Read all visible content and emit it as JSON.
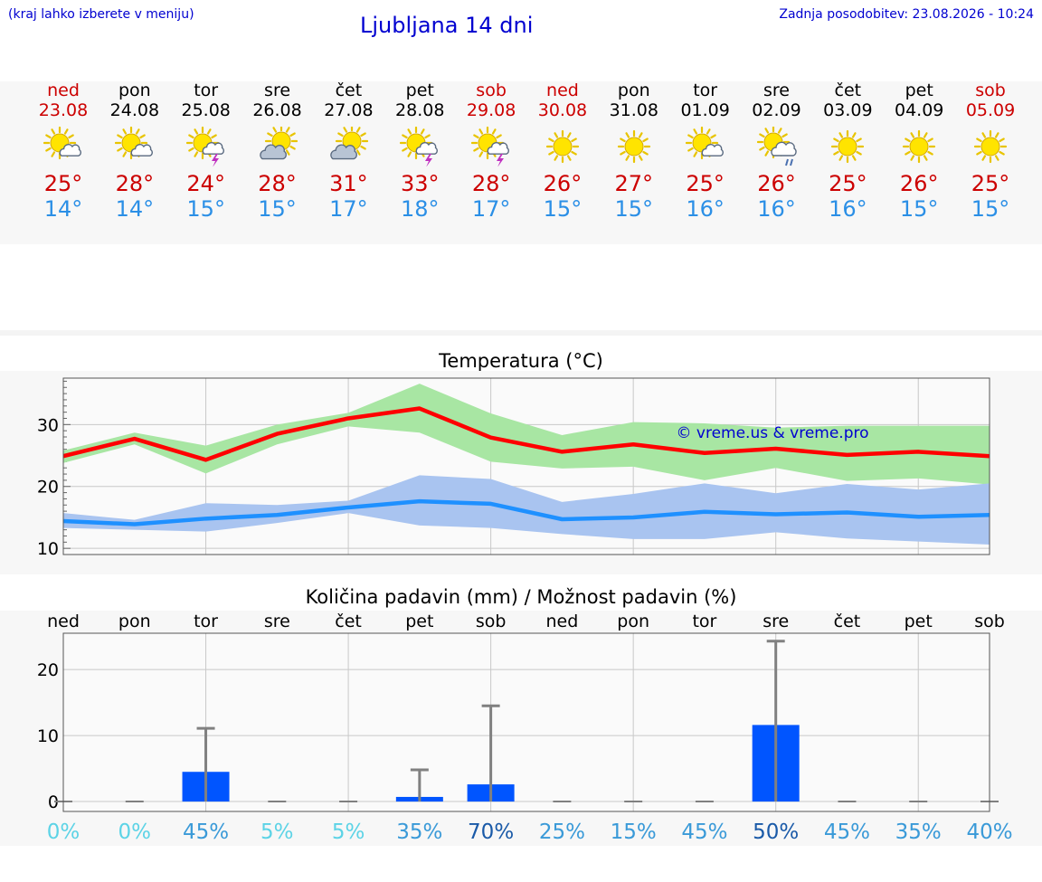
{
  "header": {
    "note": "(kraj lahko izberete v meniju)",
    "title": "Ljubljana 14 dni",
    "updated": "Zadnja posodobitev: 23.08.2026 - 10:24"
  },
  "colors": {
    "weekday": "#000000",
    "weekend": "#cc0000",
    "tmax": "#cc0000",
    "tmin": "#2b8fe6",
    "tmax_line": "#ff0000",
    "tmax_band": "#a8e6a3",
    "tmin_line": "#1e90ff",
    "tmin_band": "#a9c4f0",
    "precip_bar": "#0055ff",
    "error_bar": "#808080",
    "watermark": "#0000d0"
  },
  "days": [
    {
      "day": "ned",
      "date": "23.08",
      "weekend": true,
      "icon": "sun-cloud-icon",
      "tmax": "25°",
      "tmin": "14°"
    },
    {
      "day": "pon",
      "date": "24.08",
      "weekend": false,
      "icon": "sun-cloud-icon",
      "tmax": "28°",
      "tmin": "14°"
    },
    {
      "day": "tor",
      "date": "25.08",
      "weekend": false,
      "icon": "sun-storm-icon",
      "tmax": "24°",
      "tmin": "15°"
    },
    {
      "day": "sre",
      "date": "26.08",
      "weekend": false,
      "icon": "cloud-sun-icon",
      "tmax": "28°",
      "tmin": "15°"
    },
    {
      "day": "čet",
      "date": "27.08",
      "weekend": false,
      "icon": "cloud-sun-icon",
      "tmax": "31°",
      "tmin": "17°"
    },
    {
      "day": "pet",
      "date": "28.08",
      "weekend": false,
      "icon": "sun-storm-icon",
      "tmax": "33°",
      "tmin": "18°"
    },
    {
      "day": "sob",
      "date": "29.08",
      "weekend": true,
      "icon": "sun-storm-icon",
      "tmax": "28°",
      "tmin": "17°"
    },
    {
      "day": "ned",
      "date": "30.08",
      "weekend": true,
      "icon": "sun-icon",
      "tmax": "26°",
      "tmin": "15°"
    },
    {
      "day": "pon",
      "date": "31.08",
      "weekend": false,
      "icon": "sun-icon",
      "tmax": "27°",
      "tmin": "15°"
    },
    {
      "day": "tor",
      "date": "01.09",
      "weekend": false,
      "icon": "sun-cloud-icon",
      "tmax": "25°",
      "tmin": "16°"
    },
    {
      "day": "sre",
      "date": "02.09",
      "weekend": false,
      "icon": "sun-rain-icon",
      "tmax": "26°",
      "tmin": "16°"
    },
    {
      "day": "čet",
      "date": "03.09",
      "weekend": false,
      "icon": "sun-icon",
      "tmax": "25°",
      "tmin": "16°"
    },
    {
      "day": "pet",
      "date": "04.09",
      "weekend": false,
      "icon": "sun-icon",
      "tmax": "26°",
      "tmin": "15°"
    },
    {
      "day": "sob",
      "date": "05.09",
      "weekend": true,
      "icon": "sun-icon",
      "tmax": "25°",
      "tmin": "15°"
    }
  ],
  "chart_data": [
    {
      "type": "line",
      "title": "Temperatura (°C)",
      "x": [
        "23.08",
        "24.08",
        "25.08",
        "26.08",
        "27.08",
        "28.08",
        "29.08",
        "30.08",
        "31.08",
        "01.09",
        "02.09",
        "03.09",
        "04.09",
        "05.09"
      ],
      "ylim": [
        9,
        37.5
      ],
      "yticks": [
        10,
        20,
        30
      ],
      "grid": true,
      "watermark": "© vreme.us & vreme.pro",
      "series": [
        {
          "role": "max",
          "values": [
            24.9,
            27.7,
            24.3,
            28.5,
            31.0,
            32.6,
            27.9,
            25.6,
            26.8,
            25.4,
            26.1,
            25.1,
            25.6,
            24.9
          ],
          "band_low": [
            23.8,
            26.8,
            22.1,
            26.8,
            29.7,
            28.7,
            24.0,
            22.9,
            23.2,
            21.0,
            23.0,
            20.9,
            21.3,
            20.3
          ],
          "band_high": [
            25.8,
            28.7,
            26.6,
            30.0,
            31.9,
            36.6,
            31.8,
            28.3,
            30.4,
            30.2,
            29.5,
            29.8,
            29.8,
            29.8
          ]
        },
        {
          "role": "min",
          "values": [
            14.4,
            13.9,
            14.8,
            15.4,
            16.6,
            17.6,
            17.2,
            14.7,
            15.0,
            15.9,
            15.5,
            15.8,
            15.1,
            15.4
          ],
          "band_low": [
            13.3,
            13.0,
            12.7,
            14.1,
            15.7,
            13.7,
            13.3,
            12.3,
            11.5,
            11.5,
            12.6,
            11.6,
            11.1,
            10.6
          ],
          "band_high": [
            15.7,
            14.6,
            17.3,
            17.0,
            17.7,
            21.8,
            21.2,
            17.5,
            18.8,
            20.5,
            18.9,
            20.4,
            19.5,
            20.5
          ]
        }
      ]
    },
    {
      "type": "bar",
      "title": "Količina padavin (mm) / Možnost padavin (%)",
      "categories": [
        "ned",
        "pon",
        "tor",
        "sre",
        "čet",
        "pet",
        "sob",
        "ned",
        "pon",
        "tor",
        "sre",
        "čet",
        "pet",
        "sob"
      ],
      "values": [
        0,
        0,
        4.5,
        0,
        0,
        0.7,
        2.6,
        0,
        0,
        0,
        11.6,
        0,
        0,
        0
      ],
      "error_high": [
        0,
        0,
        11.1,
        0,
        0,
        4.8,
        14.5,
        0,
        0,
        0,
        24.3,
        0,
        0,
        0
      ],
      "ylim": [
        -1.5,
        25.5
      ],
      "yticks": [
        0,
        10,
        20
      ],
      "grid": true,
      "probability_labels": [
        "0%",
        "0%",
        "45%",
        "5%",
        "5%",
        "35%",
        "70%",
        "25%",
        "15%",
        "45%",
        "50%",
        "45%",
        "35%",
        "40%"
      ],
      "probability_colors": [
        "#5cd3e6",
        "#5cd3e6",
        "#3a9ad8",
        "#5cd3e6",
        "#5cd3e6",
        "#3a9ad8",
        "#1a5aa8",
        "#3a9ad8",
        "#3a9ad8",
        "#3a9ad8",
        "#1a5aa8",
        "#3a9ad8",
        "#3a9ad8",
        "#3a9ad8"
      ]
    }
  ]
}
